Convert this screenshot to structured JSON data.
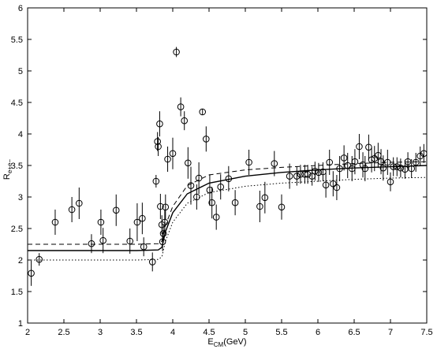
{
  "chart_data": {
    "type": "scatter",
    "xlabel": [
      "E",
      "CM",
      "(GeV)"
    ],
    "ylabel": [
      "R",
      "e+e−"
    ],
    "xlim": [
      2,
      7.5
    ],
    "ylim": [
      1,
      6
    ],
    "xticks": [
      2,
      2.5,
      3,
      3.5,
      4,
      4.5,
      5,
      5.5,
      6,
      6.5,
      7,
      7.5
    ],
    "yticks": [
      1,
      1.5,
      2,
      2.5,
      3,
      3.5,
      4,
      4.5,
      5,
      5.5,
      6
    ],
    "color": "#000000",
    "x": [
      2.05,
      2.16,
      2.38,
      2.61,
      2.71,
      2.88,
      3.01,
      3.04,
      3.22,
      3.41,
      3.51,
      3.58,
      3.6,
      3.72,
      3.77,
      3.79,
      3.8,
      3.82,
      3.83,
      3.85,
      3.86,
      3.87,
      3.89,
      3.9,
      3.93,
      4.0,
      4.05,
      4.11,
      4.16,
      4.21,
      4.25,
      4.33,
      4.36,
      4.41,
      4.46,
      4.51,
      4.54,
      4.6,
      4.66,
      4.77,
      4.86,
      5.05,
      5.2,
      5.27,
      5.4,
      5.5,
      5.61,
      5.71,
      5.76,
      5.82,
      5.86,
      5.92,
      5.96,
      6.01,
      6.07,
      6.11,
      6.16,
      6.21,
      6.26,
      6.3,
      6.36,
      6.41,
      6.47,
      6.51,
      6.57,
      6.62,
      6.65,
      6.7,
      6.74,
      6.78,
      6.83,
      6.87,
      6.9,
      6.96,
      7.0,
      7.04,
      7.09,
      7.14,
      7.2,
      7.24,
      7.29,
      7.35,
      7.41,
      7.46
    ],
    "values": [
      1.79,
      2.01,
      2.6,
      2.8,
      2.9,
      2.26,
      2.6,
      2.31,
      2.79,
      2.3,
      2.6,
      2.66,
      2.21,
      1.97,
      3.25,
      3.88,
      3.8,
      4.16,
      2.85,
      2.56,
      2.29,
      2.42,
      2.6,
      2.84,
      3.6,
      3.69,
      5.3,
      4.43,
      4.21,
      3.54,
      3.18,
      3.0,
      3.3,
      4.35,
      3.92,
      3.11,
      2.91,
      2.68,
      3.16,
      3.29,
      2.91,
      3.55,
      2.85,
      2.99,
      3.53,
      2.84,
      3.33,
      3.33,
      3.36,
      3.36,
      3.36,
      3.33,
      3.41,
      3.39,
      3.4,
      3.19,
      3.55,
      3.21,
      3.15,
      3.45,
      3.62,
      3.5,
      3.45,
      3.56,
      3.8,
      3.51,
      3.45,
      3.79,
      3.59,
      3.61,
      3.66,
      3.56,
      3.46,
      3.55,
      3.24,
      3.48,
      3.48,
      3.46,
      3.44,
      3.56,
      3.45,
      3.55,
      3.65,
      3.69
    ],
    "errors": [
      0.2,
      0.1,
      0.2,
      0.2,
      0.25,
      0.15,
      0.2,
      0.2,
      0.25,
      0.2,
      0.3,
      0.25,
      0.15,
      0.15,
      0.1,
      0.15,
      0.15,
      0.2,
      0.2,
      0.15,
      0.15,
      0.15,
      0.2,
      0.2,
      0.2,
      0.25,
      0.08,
      0.15,
      0.15,
      0.25,
      0.3,
      0.2,
      0.25,
      0.05,
      0.2,
      0.25,
      0.25,
      0.2,
      0.2,
      0.2,
      0.2,
      0.2,
      0.25,
      0.25,
      0.2,
      0.2,
      0.2,
      0.15,
      0.15,
      0.15,
      0.15,
      0.15,
      0.15,
      0.15,
      0.15,
      0.2,
      0.2,
      0.2,
      0.2,
      0.2,
      0.2,
      0.2,
      0.2,
      0.2,
      0.2,
      0.2,
      0.2,
      0.2,
      0.2,
      0.2,
      0.2,
      0.2,
      0.2,
      0.2,
      0.15,
      0.15,
      0.15,
      0.15,
      0.15,
      0.15,
      0.15,
      0.15,
      0.15,
      0.15
    ],
    "curve_x": [
      2,
      3.5,
      3.8,
      3.85,
      3.9,
      4.0,
      4.2,
      4.5,
      5,
      5.5,
      6,
      6.5,
      7,
      7.5
    ],
    "curves": [
      {
        "style": "solid",
        "values": [
          2.15,
          2.15,
          2.16,
          2.2,
          2.45,
          2.75,
          3.05,
          3.22,
          3.33,
          3.39,
          3.43,
          3.46,
          3.48,
          3.5
        ]
      },
      {
        "style": "dashed",
        "values": [
          2.25,
          2.25,
          2.26,
          2.3,
          2.55,
          2.85,
          3.18,
          3.35,
          3.43,
          3.47,
          3.5,
          3.53,
          3.55,
          3.56
        ]
      },
      {
        "style": "dotted",
        "values": [
          2.0,
          2.0,
          2.01,
          2.05,
          2.3,
          2.6,
          2.9,
          3.07,
          3.17,
          3.22,
          3.25,
          3.28,
          3.3,
          3.31
        ]
      }
    ]
  }
}
